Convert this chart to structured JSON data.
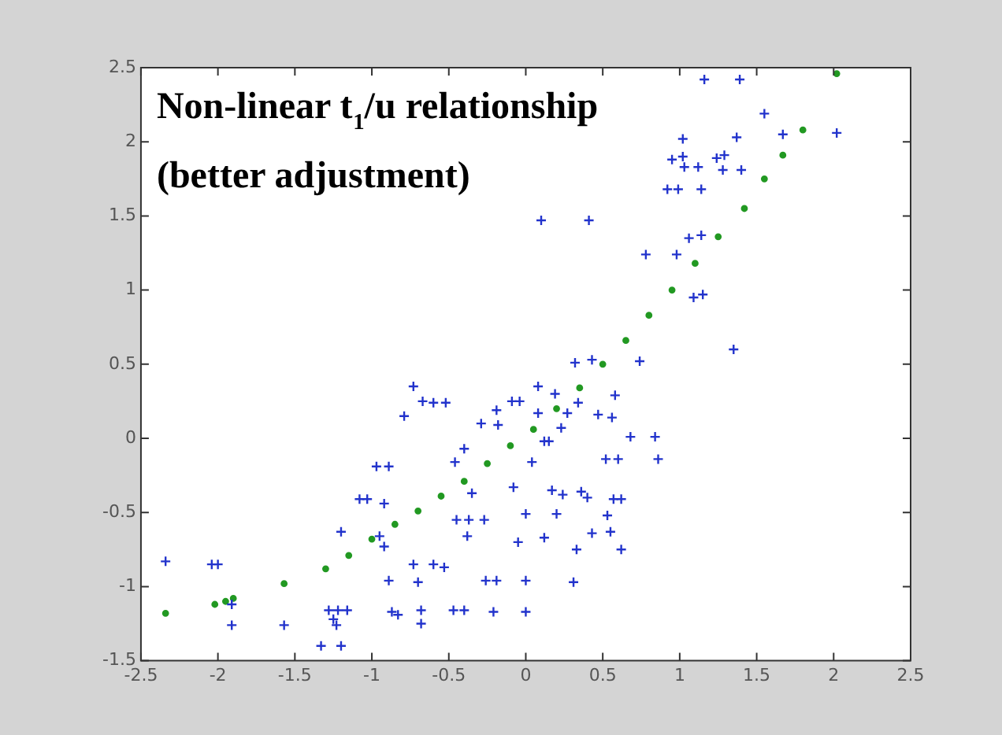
{
  "chart_data": {
    "type": "scatter",
    "title": "Non-linear t$_{1}$/u relationship",
    "subtitle": "(better adjustment)",
    "xlim": [
      -2.5,
      2.5
    ],
    "xticks": [
      -2.5,
      -2,
      -1.5,
      -1,
      -0.5,
      0,
      0.5,
      1,
      1.5,
      2,
      2.5
    ],
    "ylim": [
      -1.5,
      2.5
    ],
    "yticks": [
      -1.5,
      -1,
      -0.5,
      0,
      0.5,
      1,
      1.5,
      2,
      2.5
    ],
    "grid": false,
    "legend": false,
    "series": [
      {
        "color": "#2233cc",
        "marker": "cross",
        "x": [
          -2.34,
          -2.04,
          -2.0,
          -1.91,
          -1.91,
          -1.57,
          -1.33,
          -1.2,
          -1.28,
          -1.22,
          -1.16,
          -1.25,
          -1.23,
          -1.2,
          -1.08,
          -1.03,
          -0.92,
          -0.97,
          -0.89,
          -0.95,
          -0.92,
          -0.89,
          -0.87,
          -0.83,
          -0.73,
          -0.67,
          -0.6,
          -0.52,
          -0.79,
          -0.73,
          -0.6,
          -0.53,
          -0.7,
          -0.68,
          -0.68,
          -0.47,
          -0.4,
          -0.4,
          -0.46,
          -0.35,
          -0.45,
          -0.37,
          -0.27,
          -0.38,
          -0.29,
          -0.19,
          -0.18,
          -0.09,
          -0.04,
          -0.08,
          0,
          -0.05,
          -0.26,
          -0.19,
          -0.21,
          0,
          0,
          0.32,
          0.43,
          0.74,
          1.35,
          0.08,
          0.19,
          0.34,
          0.58,
          0.08,
          0.27,
          0.23,
          0.47,
          0.56,
          0.12,
          0.15,
          0.68,
          0.84,
          0.04,
          0.52,
          0.6,
          0.86,
          0.17,
          0.24,
          0.36,
          0.4,
          0.57,
          0.62,
          0.2,
          0.53,
          0.12,
          0.43,
          0.55,
          0.33,
          0.62,
          0.31,
          1.16,
          1.39,
          1.55,
          1.67,
          2.02,
          1.02,
          1.37,
          0.95,
          1.02,
          1.24,
          1.29,
          1.03,
          1.12,
          1.28,
          1.4,
          0.92,
          0.99,
          1.14,
          0.1,
          0.41,
          1.06,
          1.14,
          0.78,
          0.98,
          1.09,
          1.15
        ],
        "values": [
          -0.83,
          -0.85,
          -0.85,
          -1.12,
          -1.26,
          -1.26,
          -1.4,
          -1.4,
          -1.16,
          -1.16,
          -1.16,
          -1.22,
          -1.26,
          -0.63,
          -0.41,
          -0.41,
          -0.44,
          -0.19,
          -0.19,
          -0.66,
          -0.73,
          -0.96,
          -1.17,
          -1.19,
          0.35,
          0.25,
          0.24,
          0.24,
          0.15,
          -0.85,
          -0.85,
          -0.87,
          -0.97,
          -1.16,
          -1.25,
          -1.16,
          -1.16,
          -0.07,
          -0.16,
          -0.37,
          -0.55,
          -0.55,
          -0.55,
          -0.66,
          0.1,
          0.19,
          0.09,
          0.25,
          0.25,
          -0.33,
          -0.51,
          -0.7,
          -0.96,
          -0.96,
          -1.17,
          -0.96,
          -1.17,
          0.51,
          0.53,
          0.52,
          0.6,
          0.35,
          0.3,
          0.24,
          0.29,
          0.17,
          0.17,
          0.07,
          0.16,
          0.14,
          -0.02,
          -0.02,
          0.01,
          0.01,
          -0.16,
          -0.14,
          -0.14,
          -0.14,
          -0.35,
          -0.38,
          -0.36,
          -0.4,
          -0.41,
          -0.41,
          -0.51,
          -0.52,
          -0.67,
          -0.64,
          -0.63,
          -0.75,
          -0.75,
          -0.97,
          2.42,
          2.42,
          2.19,
          2.05,
          2.06,
          2.02,
          2.03,
          1.88,
          1.9,
          1.89,
          1.91,
          1.83,
          1.83,
          1.81,
          1.81,
          1.68,
          1.68,
          1.68,
          1.47,
          1.47,
          1.35,
          1.37,
          1.24,
          1.24,
          0.95,
          0.97
        ]
      },
      {
        "color": "#229922",
        "marker": "circle",
        "x": [
          -2.34,
          -2.02,
          -1.95,
          -1.9,
          -1.57,
          -1.3,
          -1.15,
          -1.0,
          -0.85,
          -0.7,
          -0.55,
          -0.4,
          -0.25,
          -0.1,
          0.05,
          0.2,
          0.35,
          0.5,
          0.65,
          0.8,
          0.95,
          1.1,
          1.25,
          1.42,
          1.55,
          1.67,
          1.8,
          2.02
        ],
        "values": [
          -1.18,
          -1.12,
          -1.1,
          -1.08,
          -0.98,
          -0.88,
          -0.79,
          -0.68,
          -0.58,
          -0.49,
          -0.39,
          -0.29,
          -0.17,
          -0.05,
          0.06,
          0.2,
          0.34,
          0.5,
          0.66,
          0.83,
          1.0,
          1.18,
          1.36,
          1.55,
          1.75,
          1.91,
          2.08,
          2.46
        ]
      }
    ]
  }
}
